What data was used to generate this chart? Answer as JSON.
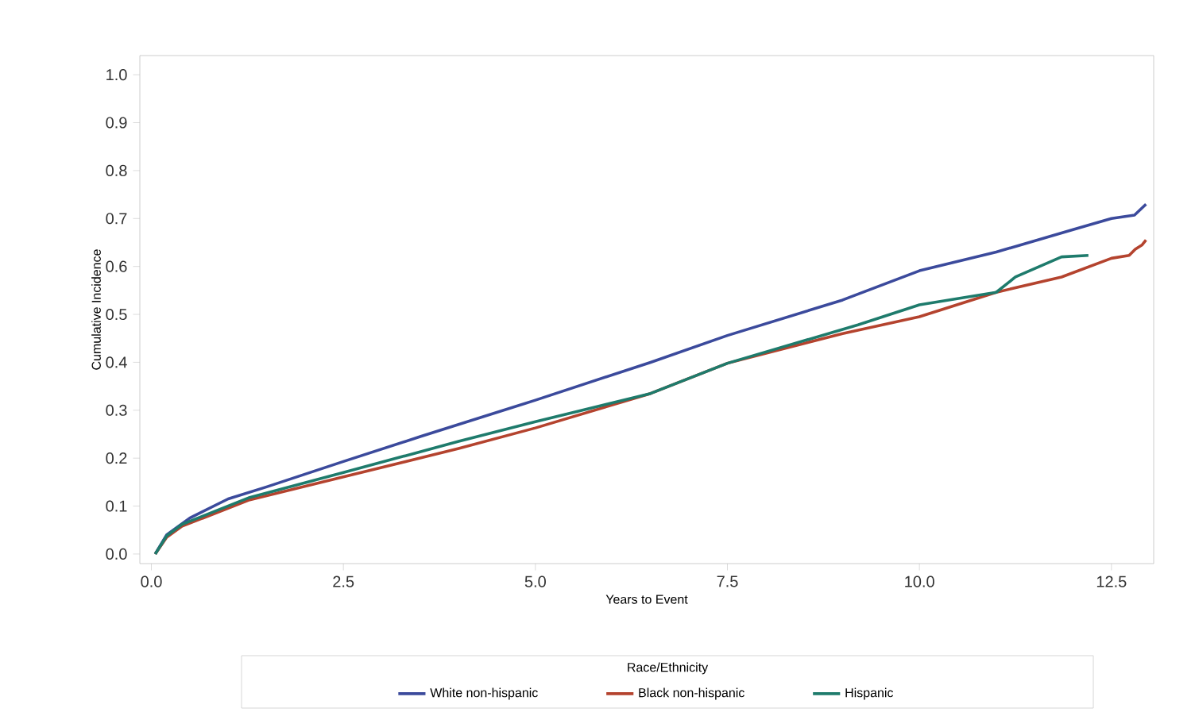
{
  "chart_data": {
    "type": "line",
    "xlabel": "Years to Event",
    "ylabel": "Cumulative Incidence",
    "legend_title": "Race/Ethnicity",
    "legend": "bottom",
    "xlim": [
      -0.15,
      13.05
    ],
    "ylim": [
      -0.02,
      1.04
    ],
    "xticks": [
      {
        "value": 0,
        "label": "0.0"
      },
      2.5,
      {
        "value": 5,
        "label": "5.0"
      },
      7.5,
      {
        "value": 10,
        "label": "10.0"
      },
      12.5
    ],
    "yticks": [
      {
        "value": 0,
        "label": "0.0"
      },
      0.1,
      0.2,
      0.3,
      0.4,
      0.5,
      0.6,
      0.7,
      0.8,
      0.9,
      {
        "value": 1,
        "label": "1.0"
      }
    ],
    "series": [
      {
        "name": "White non-hispanic",
        "color": "#3b4a9c",
        "x": [
          0.05,
          0.2,
          0.5,
          1.0,
          1.5,
          2.5,
          3.5,
          5.0,
          6.5,
          7.5,
          9.0,
          10.0,
          11.0,
          12.0,
          12.5,
          12.8,
          12.95
        ],
        "values": [
          0.0,
          0.04,
          0.075,
          0.115,
          0.14,
          0.193,
          0.245,
          0.321,
          0.4,
          0.456,
          0.53,
          0.591,
          0.63,
          0.677,
          0.7,
          0.707,
          0.73
        ]
      },
      {
        "name": "Black non-hispanic",
        "color": "#b4432e",
        "x": [
          0.05,
          0.2,
          0.4,
          1.28,
          2.5,
          4.0,
          5.0,
          6.5,
          7.5,
          9.0,
          10.0,
          11.0,
          11.85,
          12.5,
          12.73,
          12.81,
          12.9,
          12.95
        ],
        "values": [
          0.0,
          0.035,
          0.058,
          0.113,
          0.161,
          0.22,
          0.263,
          0.335,
          0.398,
          0.46,
          0.495,
          0.546,
          0.578,
          0.617,
          0.623,
          0.636,
          0.645,
          0.655
        ]
      },
      {
        "name": "Hispanic",
        "color": "#1e7b6c",
        "x": [
          0.05,
          0.2,
          0.4,
          1.28,
          2.5,
          4.0,
          5.0,
          6.5,
          7.5,
          9.2,
          10.0,
          11.0,
          11.25,
          11.85,
          12.2
        ],
        "values": [
          0.0,
          0.038,
          0.062,
          0.118,
          0.17,
          0.235,
          0.276,
          0.335,
          0.398,
          0.478,
          0.52,
          0.546,
          0.578,
          0.62,
          0.623
        ]
      }
    ]
  }
}
